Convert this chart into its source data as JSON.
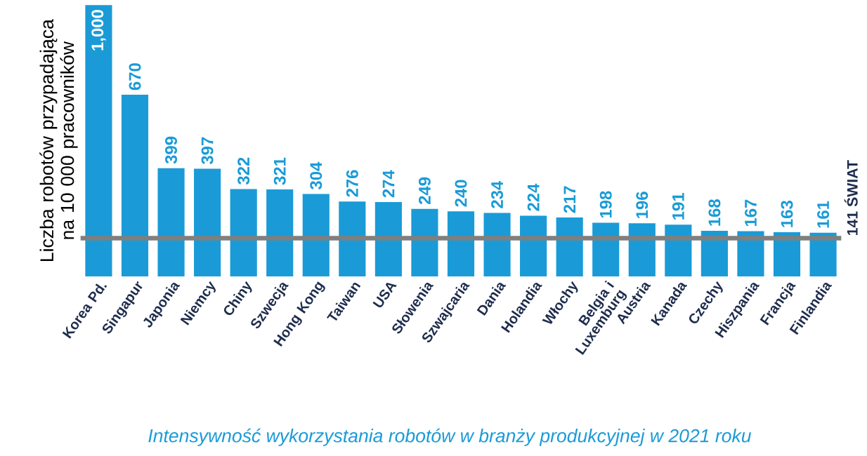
{
  "chart_data": {
    "type": "bar",
    "ylabel": "Liczba robotów przypadająca na 10 000 pracowników",
    "categories": [
      "Korea Pd.",
      "Singapur",
      "Japonia",
      "Niemcy",
      "Chiny",
      "Szwecja",
      "Hong Kong",
      "Taiwan",
      "USA",
      "Słowenia",
      "Szwajcaria",
      "Dania",
      "Holandia",
      "Włochy",
      "Belgia i Luxemburg",
      "Austria",
      "Kanada",
      "Czechy",
      "Hiszpania",
      "Francja",
      "Finlandia"
    ],
    "values": [
      1000,
      670,
      399,
      397,
      322,
      321,
      304,
      276,
      274,
      249,
      240,
      234,
      224,
      217,
      198,
      196,
      191,
      168,
      167,
      163,
      161
    ],
    "value_labels": [
      "1,000",
      "670",
      "399",
      "397",
      "322",
      "321",
      "304",
      "276",
      "274",
      "249",
      "240",
      "234",
      "224",
      "217",
      "198",
      "196",
      "191",
      "168",
      "167",
      "163",
      "161"
    ],
    "color": "#1a9bd7",
    "ref_lines": [
      {
        "axis": "y",
        "value": 141,
        "label": "141 ŚWIAT",
        "color": "#7f7f7f"
      }
    ],
    "annotations": [
      "Intensywność wykorzystania robotów w branży produkcyjnej w 2021 roku"
    ]
  }
}
